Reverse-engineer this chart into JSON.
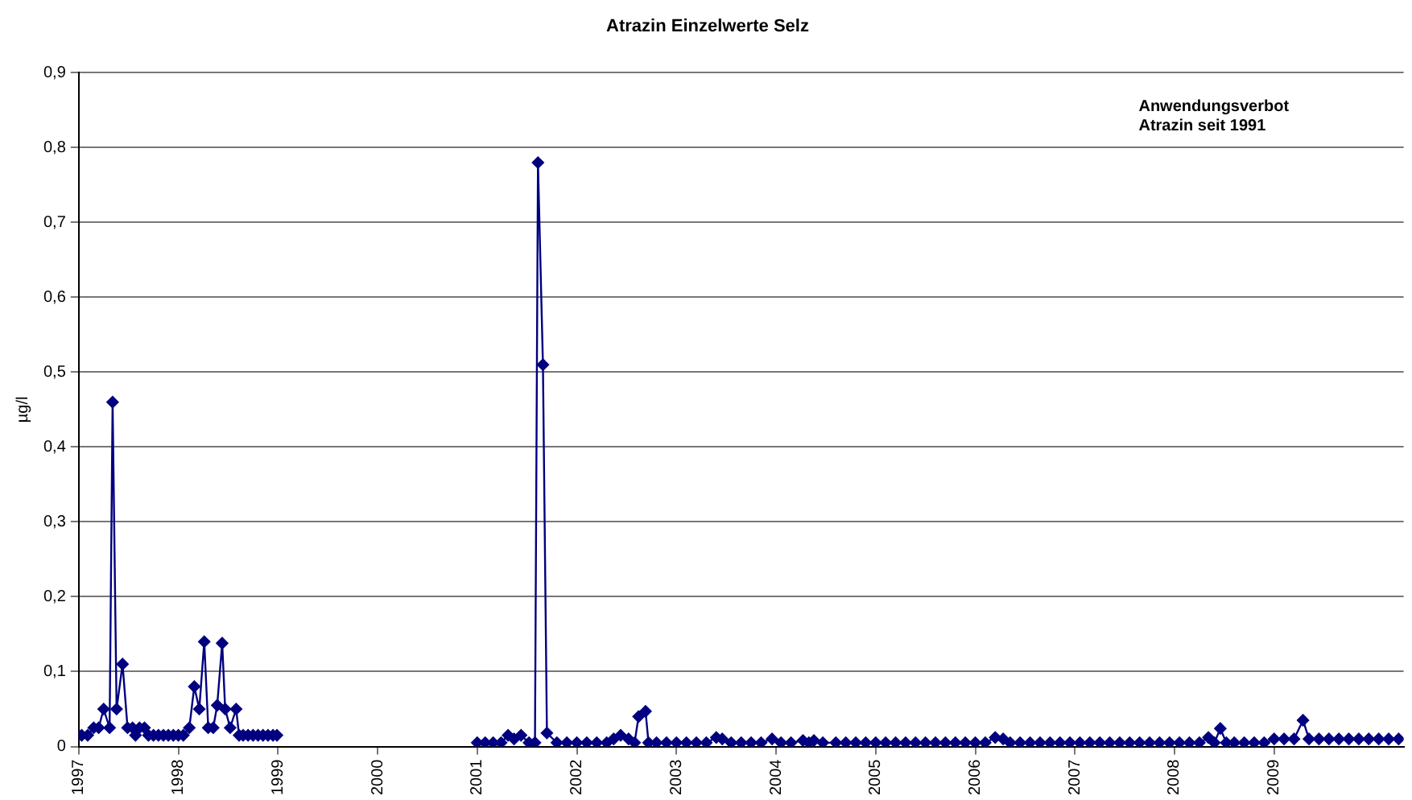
{
  "chart_data": {
    "type": "line",
    "title": "Atrazin Einzelwerte Selz",
    "ylabel": "µg/l",
    "annotations": [
      "Anwendungsverbot\nAtrazin seit 1991"
    ],
    "x": [
      1997,
      1997.03,
      1997.09,
      1997.15,
      1997.2,
      1997.25,
      1997.31,
      1997.34,
      1997.38,
      1997.44,
      1997.49,
      1997.54,
      1997.57,
      1997.61,
      1997.66,
      1997.7,
      1997.75,
      1997.8,
      1997.85,
      1997.9,
      1997.95,
      1998,
      1998.05,
      1998.11,
      1998.16,
      1998.21,
      1998.26,
      1998.3,
      1998.35,
      1998.39,
      1998.44,
      1998.47,
      1998.52,
      1998.58,
      1998.61,
      1998.65,
      1998.7,
      1998.75,
      1998.8,
      1998.85,
      1998.9,
      1998.95,
      1998.99,
      1999.5,
      2001,
      2001.08,
      2001.16,
      2001.24,
      2001.31,
      2001.37,
      2001.44,
      2001.52,
      2001.58,
      2001.61,
      2001.66,
      2001.7,
      2001.8,
      2001.9,
      2002,
      2002.1,
      2002.2,
      2002.3,
      2002.37,
      2002.44,
      2002.52,
      2002.58,
      2002.62,
      2002.69,
      2002.72,
      2002.8,
      2002.9,
      2003,
      2003.1,
      2003.2,
      2003.3,
      2003.4,
      2003.46,
      2003.55,
      2003.65,
      2003.75,
      2003.85,
      2003.96,
      2004.05,
      2004.15,
      2004.27,
      2004.33,
      2004.38,
      2004.47,
      2004.6,
      2004.7,
      2004.8,
      2004.9,
      2005,
      2005.1,
      2005.2,
      2005.3,
      2005.4,
      2005.5,
      2005.6,
      2005.7,
      2005.8,
      2005.9,
      2006,
      2006.1,
      2006.2,
      2006.28,
      2006.35,
      2006.45,
      2006.55,
      2006.65,
      2006.75,
      2006.85,
      2006.95,
      2007.05,
      2007.15,
      2007.25,
      2007.35,
      2007.45,
      2007.55,
      2007.65,
      2007.75,
      2007.85,
      2007.95,
      2008.05,
      2008.15,
      2008.25,
      2008.34,
      2008.4,
      2008.46,
      2008.52,
      2008.6,
      2008.7,
      2008.8,
      2008.9,
      2009,
      2009.1,
      2009.2,
      2009.29,
      2009.35,
      2009.45,
      2009.55,
      2009.65,
      2009.75,
      2009.85,
      2009.95,
      2010.05,
      2010.15,
      2010.25
    ],
    "series": [
      {
        "color": "#000080",
        "values": [
          0.015,
          0.015,
          0.015,
          0.025,
          0.025,
          0.05,
          0.025,
          0.46,
          0.05,
          0.11,
          0.025,
          0.025,
          0.015,
          0.025,
          0.025,
          0.015,
          0.015,
          0.015,
          0.015,
          0.015,
          0.015,
          0.015,
          0.015,
          0.025,
          0.08,
          0.05,
          0.14,
          0.025,
          0.025,
          0.055,
          0.138,
          0.05,
          0.025,
          0.05,
          0.015,
          0.015,
          0.015,
          0.015,
          0.015,
          0.015,
          0.015,
          0.015,
          0.015,
          null,
          0.005,
          0.005,
          0.005,
          0.005,
          0.015,
          0.01,
          0.015,
          0.005,
          0.005,
          0.78,
          0.51,
          0.018,
          0.005,
          0.005,
          0.005,
          0.005,
          0.005,
          0.005,
          0.01,
          0.015,
          0.01,
          0.005,
          0.04,
          0.047,
          0.005,
          0.005,
          0.005,
          0.005,
          0.005,
          0.005,
          0.005,
          0.012,
          0.01,
          0.005,
          0.005,
          0.005,
          0.005,
          0.01,
          0.005,
          0.005,
          0.008,
          0.005,
          0.008,
          0.005,
          0.005,
          0.005,
          0.005,
          0.005,
          0.005,
          0.005,
          0.005,
          0.005,
          0.005,
          0.005,
          0.005,
          0.005,
          0.005,
          0.005,
          0.005,
          0.005,
          0.012,
          0.01,
          0.005,
          0.005,
          0.005,
          0.005,
          0.005,
          0.005,
          0.005,
          0.005,
          0.005,
          0.005,
          0.005,
          0.005,
          0.005,
          0.005,
          0.005,
          0.005,
          0.005,
          0.005,
          0.005,
          0.005,
          0.012,
          0.005,
          0.024,
          0.005,
          0.005,
          0.005,
          0.005,
          0.005,
          0.01,
          0.01,
          0.01,
          0.035,
          0.01,
          0.01,
          0.01,
          0.01,
          0.01,
          0.01,
          0.01,
          0.01,
          0.01,
          0.01
        ]
      }
    ],
    "xlim": [
      1997,
      2010.3
    ],
    "xticks": [
      1997,
      1998,
      1999,
      2000,
      2001,
      2002,
      2003,
      2004,
      2005,
      2006,
      2007,
      2008,
      2009
    ],
    "ylim": [
      0,
      0.9
    ],
    "yticks": [
      0,
      {
        "value": 0.1,
        "label": "0,1"
      },
      {
        "value": 0.2,
        "label": "0,2"
      },
      {
        "value": 0.3,
        "label": "0,3"
      },
      {
        "value": 0.4,
        "label": "0,4"
      },
      {
        "value": 0.5,
        "label": "0,5"
      },
      {
        "value": 0.6,
        "label": "0,6"
      },
      {
        "value": 0.7,
        "label": "0,7"
      },
      {
        "value": 0.8,
        "label": "0,8"
      },
      {
        "value": 0.9,
        "label": "0,9"
      }
    ],
    "grid": "y",
    "legend": false,
    "marker": "diamond",
    "line_style": "solid"
  }
}
